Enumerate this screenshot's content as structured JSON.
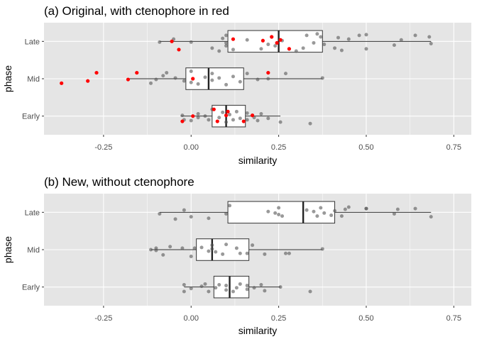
{
  "chart_data": [
    {
      "type": "boxplot-jitter",
      "title": "(a) Original, with ctenophore in red",
      "xlabel": "similarity",
      "ylabel": "phase",
      "xlim": [
        -0.42,
        0.8
      ],
      "x_ticks": [
        -0.25,
        0.0,
        0.25,
        0.5,
        0.75
      ],
      "x_tick_labels": [
        "-0.25",
        "0.00",
        "0.25",
        "0.50",
        "0.75"
      ],
      "categories": [
        "Late",
        "Mid",
        "Early"
      ],
      "grid": true,
      "colors": {
        "panel_bg": "#e5e5e5",
        "grid": "#ffffff",
        "points": "#555555",
        "highlight": "#ff0000"
      },
      "boxes": [
        {
          "category": "Late",
          "whisker_low": -0.09,
          "q1": 0.105,
          "median": 0.25,
          "q3": 0.375,
          "whisker_high": 0.685
        },
        {
          "category": "Mid",
          "whisker_low": -0.18,
          "q1": -0.015,
          "median": 0.05,
          "q3": 0.15,
          "whisker_high": 0.375
        },
        {
          "category": "Early",
          "whisker_low": -0.03,
          "q1": 0.06,
          "median": 0.1,
          "q3": 0.155,
          "whisker_high": 0.255
        }
      ],
      "series": [
        {
          "category": "Late",
          "points": [
            {
              "x": -0.09,
              "dy": 0.02
            },
            {
              "x": -0.05,
              "dy": -0.06
            },
            {
              "x": 0.0,
              "dy": 0.02
            },
            {
              "x": 0.06,
              "dy": 0.18
            },
            {
              "x": 0.08,
              "dy": 0.26
            },
            {
              "x": 0.09,
              "dy": -0.08
            },
            {
              "x": 0.1,
              "dy": 0.04
            },
            {
              "x": 0.1,
              "dy": 0.12
            },
            {
              "x": 0.1,
              "dy": -0.16
            },
            {
              "x": 0.12,
              "dy": 0.22
            },
            {
              "x": 0.16,
              "dy": -0.04
            },
            {
              "x": 0.2,
              "dy": 0.2
            },
            {
              "x": 0.22,
              "dy": 0.08
            },
            {
              "x": 0.24,
              "dy": 0.12
            },
            {
              "x": 0.26,
              "dy": -0.02
            },
            {
              "x": 0.3,
              "dy": 0.26
            },
            {
              "x": 0.32,
              "dy": 0.18
            },
            {
              "x": 0.33,
              "dy": -0.16
            },
            {
              "x": 0.35,
              "dy": 0.04
            },
            {
              "x": 0.36,
              "dy": -0.2
            },
            {
              "x": 0.37,
              "dy": -0.12
            },
            {
              "x": 0.38,
              "dy": 0.08
            },
            {
              "x": 0.41,
              "dy": 0.18
            },
            {
              "x": 0.42,
              "dy": -0.1
            },
            {
              "x": 0.43,
              "dy": 0.24
            },
            {
              "x": 0.45,
              "dy": -0.06
            },
            {
              "x": 0.48,
              "dy": -0.16
            },
            {
              "x": 0.5,
              "dy": 0.2
            },
            {
              "x": 0.5,
              "dy": -0.18
            },
            {
              "x": 0.58,
              "dy": 0.1
            },
            {
              "x": 0.6,
              "dy": -0.04
            },
            {
              "x": 0.64,
              "dy": -0.16
            },
            {
              "x": 0.68,
              "dy": -0.12
            },
            {
              "x": 0.685,
              "dy": 0.06
            }
          ],
          "highlight": [
            {
              "x": -0.035,
              "dy": 0.22
            },
            {
              "x": -0.055,
              "dy": 0.0
            },
            {
              "x": 0.12,
              "dy": -0.06
            },
            {
              "x": 0.205,
              "dy": -0.02
            },
            {
              "x": 0.23,
              "dy": -0.12
            },
            {
              "x": 0.245,
              "dy": 0.04
            },
            {
              "x": 0.255,
              "dy": -0.04
            },
            {
              "x": 0.28,
              "dy": 0.2
            }
          ]
        },
        {
          "category": "Mid",
          "points": [
            {
              "x": -0.115,
              "dy": 0.12
            },
            {
              "x": -0.1,
              "dy": 0.02
            },
            {
              "x": -0.08,
              "dy": -0.08
            },
            {
              "x": -0.07,
              "dy": -0.16
            },
            {
              "x": -0.045,
              "dy": -0.02
            },
            {
              "x": -0.02,
              "dy": 0.06
            },
            {
              "x": 0.0,
              "dy": 0.1
            },
            {
              "x": 0.0,
              "dy": -0.2
            },
            {
              "x": 0.02,
              "dy": 0.14
            },
            {
              "x": 0.04,
              "dy": -0.04
            },
            {
              "x": 0.06,
              "dy": 0.04
            },
            {
              "x": 0.06,
              "dy": -0.14
            },
            {
              "x": 0.08,
              "dy": -0.02
            },
            {
              "x": 0.1,
              "dy": 0.16
            },
            {
              "x": 0.12,
              "dy": -0.06
            },
            {
              "x": 0.14,
              "dy": 0.08
            },
            {
              "x": 0.16,
              "dy": -0.14
            },
            {
              "x": 0.19,
              "dy": 0.02
            },
            {
              "x": 0.22,
              "dy": 0.0
            },
            {
              "x": 0.27,
              "dy": -0.14
            },
            {
              "x": 0.375,
              "dy": -0.02
            }
          ],
          "highlight": [
            {
              "x": -0.37,
              "dy": 0.12
            },
            {
              "x": -0.295,
              "dy": 0.06
            },
            {
              "x": -0.27,
              "dy": -0.16
            },
            {
              "x": -0.18,
              "dy": 0.02
            },
            {
              "x": -0.155,
              "dy": -0.16
            },
            {
              "x": 0.005,
              "dy": 0.0
            },
            {
              "x": 0.22,
              "dy": -0.16
            }
          ]
        },
        {
          "category": "Early",
          "points": [
            {
              "x": -0.025,
              "dy": -0.02
            },
            {
              "x": -0.02,
              "dy": 0.1
            },
            {
              "x": 0.0,
              "dy": 0.12
            },
            {
              "x": 0.02,
              "dy": 0.04
            },
            {
              "x": 0.02,
              "dy": -0.06
            },
            {
              "x": 0.04,
              "dy": 0.0
            },
            {
              "x": 0.05,
              "dy": 0.1
            },
            {
              "x": 0.06,
              "dy": -0.18
            },
            {
              "x": 0.08,
              "dy": 0.04
            },
            {
              "x": 0.09,
              "dy": -0.1
            },
            {
              "x": 0.1,
              "dy": 0.16
            },
            {
              "x": 0.11,
              "dy": -0.04
            },
            {
              "x": 0.12,
              "dy": 0.1
            },
            {
              "x": 0.13,
              "dy": -0.12
            },
            {
              "x": 0.14,
              "dy": 0.06
            },
            {
              "x": 0.16,
              "dy": 0.1
            },
            {
              "x": 0.16,
              "dy": -0.08
            },
            {
              "x": 0.18,
              "dy": 0.04
            },
            {
              "x": 0.19,
              "dy": 0.12
            },
            {
              "x": 0.2,
              "dy": -0.06
            },
            {
              "x": 0.22,
              "dy": 0.06
            },
            {
              "x": 0.255,
              "dy": 0.16
            },
            {
              "x": 0.34,
              "dy": 0.2
            }
          ],
          "highlight": [
            {
              "x": -0.025,
              "dy": 0.14
            },
            {
              "x": 0.005,
              "dy": 0.0
            },
            {
              "x": 0.065,
              "dy": -0.18
            },
            {
              "x": 0.075,
              "dy": 0.14
            },
            {
              "x": 0.1,
              "dy": -0.02
            },
            {
              "x": 0.105,
              "dy": -0.12
            },
            {
              "x": 0.15,
              "dy": 0.14
            },
            {
              "x": 0.175,
              "dy": -0.02
            }
          ]
        }
      ]
    },
    {
      "type": "boxplot-jitter",
      "title": "(b) New, without ctenophore",
      "xlabel": "similarity",
      "ylabel": "phase",
      "xlim": [
        -0.42,
        0.8
      ],
      "x_ticks": [
        -0.25,
        0.0,
        0.25,
        0.5,
        0.75
      ],
      "x_tick_labels": [
        "-0.25",
        "0.00",
        "0.25",
        "0.50",
        "0.75"
      ],
      "categories": [
        "Late",
        "Mid",
        "Early"
      ],
      "grid": true,
      "colors": {
        "panel_bg": "#e5e5e5",
        "grid": "#ffffff",
        "points": "#555555",
        "highlight": "#ff0000"
      },
      "boxes": [
        {
          "category": "Late",
          "whisker_low": -0.09,
          "q1": 0.105,
          "median": 0.32,
          "q3": 0.41,
          "whisker_high": 0.685
        },
        {
          "category": "Mid",
          "whisker_low": -0.115,
          "q1": 0.015,
          "median": 0.06,
          "q3": 0.165,
          "whisker_high": 0.375
        },
        {
          "category": "Early",
          "whisker_low": -0.02,
          "q1": 0.065,
          "median": 0.11,
          "q3": 0.165,
          "whisker_high": 0.255
        }
      ],
      "series": [
        {
          "category": "Late",
          "points": [
            {
              "x": -0.09,
              "dy": 0.04
            },
            {
              "x": -0.045,
              "dy": 0.18
            },
            {
              "x": -0.02,
              "dy": -0.06
            },
            {
              "x": 0.0,
              "dy": 0.12
            },
            {
              "x": 0.05,
              "dy": 0.16
            },
            {
              "x": 0.1,
              "dy": 0.04
            },
            {
              "x": 0.11,
              "dy": -0.18
            },
            {
              "x": 0.22,
              "dy": -0.02
            },
            {
              "x": 0.24,
              "dy": 0.02
            },
            {
              "x": 0.25,
              "dy": 0.06
            },
            {
              "x": 0.25,
              "dy": -0.12
            },
            {
              "x": 0.26,
              "dy": 0.1
            },
            {
              "x": 0.33,
              "dy": -0.06
            },
            {
              "x": 0.35,
              "dy": -0.02
            },
            {
              "x": 0.36,
              "dy": 0.1
            },
            {
              "x": 0.37,
              "dy": -0.12
            },
            {
              "x": 0.38,
              "dy": 0.02
            },
            {
              "x": 0.4,
              "dy": 0.08
            },
            {
              "x": 0.41,
              "dy": -0.04
            },
            {
              "x": 0.43,
              "dy": 0.1
            },
            {
              "x": 0.44,
              "dy": -0.08
            },
            {
              "x": 0.45,
              "dy": -0.14
            },
            {
              "x": 0.5,
              "dy": -0.1
            },
            {
              "x": 0.5,
              "dy": -0.1
            },
            {
              "x": 0.58,
              "dy": 0.04
            },
            {
              "x": 0.59,
              "dy": -0.08
            },
            {
              "x": 0.64,
              "dy": -0.1
            },
            {
              "x": 0.685,
              "dy": 0.12
            }
          ],
          "highlight": []
        },
        {
          "category": "Mid",
          "points": [
            {
              "x": -0.115,
              "dy": 0.0
            },
            {
              "x": -0.1,
              "dy": -0.04
            },
            {
              "x": -0.1,
              "dy": 0.02
            },
            {
              "x": -0.08,
              "dy": 0.14
            },
            {
              "x": -0.06,
              "dy": -0.08
            },
            {
              "x": -0.025,
              "dy": -0.04
            },
            {
              "x": 0.0,
              "dy": 0.18
            },
            {
              "x": 0.01,
              "dy": -0.04
            },
            {
              "x": 0.03,
              "dy": -0.06
            },
            {
              "x": 0.05,
              "dy": 0.04
            },
            {
              "x": 0.06,
              "dy": -0.12
            },
            {
              "x": 0.06,
              "dy": -0.02
            },
            {
              "x": 0.07,
              "dy": 0.06
            },
            {
              "x": 0.09,
              "dy": 0.12
            },
            {
              "x": 0.1,
              "dy": -0.14
            },
            {
              "x": 0.13,
              "dy": -0.04
            },
            {
              "x": 0.14,
              "dy": 0.1
            },
            {
              "x": 0.16,
              "dy": 0.1
            },
            {
              "x": 0.175,
              "dy": -0.12
            },
            {
              "x": 0.21,
              "dy": 0.12
            },
            {
              "x": 0.27,
              "dy": 0.1
            },
            {
              "x": 0.28,
              "dy": 0.1
            },
            {
              "x": 0.375,
              "dy": -0.02
            }
          ],
          "highlight": []
        },
        {
          "category": "Early",
          "points": [
            {
              "x": -0.02,
              "dy": 0.12
            },
            {
              "x": -0.02,
              "dy": -0.06
            },
            {
              "x": 0.0,
              "dy": 0.04
            },
            {
              "x": 0.03,
              "dy": -0.02
            },
            {
              "x": 0.04,
              "dy": -0.08
            },
            {
              "x": 0.05,
              "dy": 0.12
            },
            {
              "x": 0.07,
              "dy": 0.02
            },
            {
              "x": 0.08,
              "dy": -0.06
            },
            {
              "x": 0.1,
              "dy": 0.08
            },
            {
              "x": 0.1,
              "dy": -0.04
            },
            {
              "x": 0.12,
              "dy": 0.12
            },
            {
              "x": 0.13,
              "dy": 0.02
            },
            {
              "x": 0.14,
              "dy": -0.08
            },
            {
              "x": 0.16,
              "dy": 0.06
            },
            {
              "x": 0.16,
              "dy": -0.04
            },
            {
              "x": 0.18,
              "dy": 0.02
            },
            {
              "x": 0.2,
              "dy": -0.06
            },
            {
              "x": 0.21,
              "dy": 0.1
            },
            {
              "x": 0.255,
              "dy": 0.0
            },
            {
              "x": 0.34,
              "dy": 0.12
            }
          ],
          "highlight": []
        }
      ]
    }
  ]
}
